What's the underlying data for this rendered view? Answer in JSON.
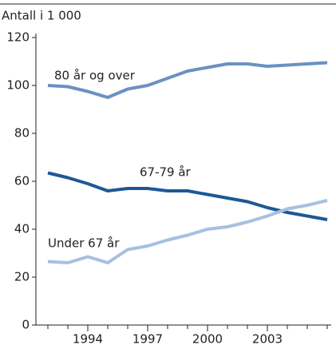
{
  "chart_data": {
    "type": "line",
    "y_label": "Antall i 1 000",
    "x": [
      1992,
      1993,
      1994,
      1995,
      1996,
      1997,
      1998,
      1999,
      2000,
      2001,
      2002,
      2003,
      2004,
      2005,
      2006
    ],
    "series": [
      {
        "name": "80 år og over",
        "color": "#6a91c2",
        "values": [
          100,
          99.5,
          97.5,
          95,
          98.5,
          100,
          103,
          106,
          107.5,
          109,
          109,
          108,
          108.5,
          109,
          109.5
        ]
      },
      {
        "name": "67-79 år",
        "color": "#1d5896",
        "values": [
          63.5,
          61.5,
          59,
          56,
          57,
          57,
          56,
          56,
          54.5,
          53,
          51.5,
          49,
          47,
          45.5,
          44
        ]
      },
      {
        "name": "Under 67 år",
        "color": "#a7c0e0",
        "values": [
          26.5,
          26,
          28.5,
          26,
          31.5,
          33,
          35.5,
          37.5,
          40,
          41,
          43,
          45.5,
          48.5,
          50,
          52
        ]
      }
    ],
    "xlim": [
      1991.4,
      2006.2
    ],
    "xticks": [
      1994,
      1997,
      2000,
      2003
    ],
    "ylim": [
      0,
      120
    ],
    "yticks": [
      0,
      20,
      40,
      60,
      80,
      100,
      120
    ],
    "grid": false
  }
}
